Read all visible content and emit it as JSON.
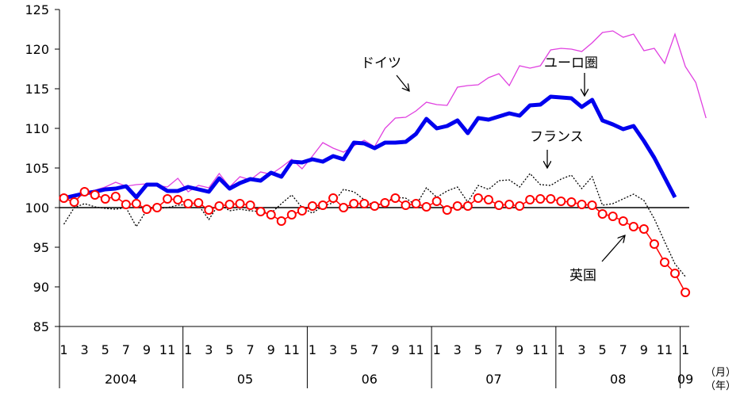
{
  "chart_data": {
    "type": "line",
    "title": "",
    "xlabel": "",
    "ylabel": "",
    "ylim": [
      85,
      125
    ],
    "yticks": [
      "125",
      "120",
      "115",
      "110",
      "105",
      "100",
      "95",
      "90",
      "85"
    ],
    "reference_line": 100,
    "month_labels": [
      "1",
      "3",
      "5",
      "7",
      "9",
      "11",
      "1",
      "3",
      "5",
      "7",
      "9",
      "11",
      "1",
      "3",
      "5",
      "7",
      "9",
      "11",
      "1",
      "3",
      "5",
      "7",
      "9",
      "11",
      "1",
      "3",
      "5",
      "7",
      "9",
      "11",
      "1"
    ],
    "year_labels": [
      "2004",
      "05",
      "06",
      "07",
      "08",
      "09"
    ],
    "unit_month": "（月）",
    "unit_year": "（年）",
    "series": [
      {
        "name": "ドイツ",
        "color": "#e040e0",
        "values": [
          101.0,
          101.3,
          101.9,
          102.2,
          102.6,
          103.2,
          102.7,
          102.9,
          103.0,
          102.8,
          102.6,
          103.7,
          102.0,
          102.8,
          102.5,
          104.3,
          102.6,
          103.9,
          103.5,
          104.5,
          104.2,
          105.1,
          106.1,
          104.9,
          106.5,
          108.2,
          107.5,
          107.0,
          107.8,
          108.5,
          107.7,
          110.0,
          111.3,
          111.4,
          112.2,
          113.3,
          113.0,
          112.9,
          115.2,
          115.4,
          115.5,
          116.4,
          116.9,
          115.4,
          117.9,
          117.6,
          117.9,
          119.9,
          120.1,
          120.0,
          119.7,
          120.8,
          122.1,
          122.3,
          121.5,
          121.9,
          119.8,
          120.1,
          118.2,
          121.9,
          117.8,
          115.8,
          111.3
        ]
      },
      {
        "name": "ユーロ圏",
        "color": "#0000ee",
        "values": [
          101.2,
          101.5,
          101.8,
          102.0,
          102.3,
          102.4,
          102.7,
          101.3,
          102.9,
          102.9,
          102.1,
          102.1,
          102.6,
          102.3,
          102.0,
          103.7,
          102.4,
          103.1,
          103.6,
          103.4,
          104.4,
          103.9,
          105.8,
          105.7,
          106.1,
          105.8,
          106.5,
          106.1,
          108.2,
          108.1,
          107.5,
          108.2,
          108.2,
          108.3,
          109.3,
          111.2,
          110.0,
          110.3,
          111.0,
          109.4,
          111.3,
          111.1,
          111.5,
          111.9,
          111.6,
          112.9,
          113.0,
          114.0,
          113.9,
          113.8,
          112.7,
          113.6,
          111.0,
          110.5,
          109.9,
          110.3,
          108.4,
          106.3,
          103.8,
          101.3
        ]
      },
      {
        "name": "フランス",
        "color": "#000000",
        "values": [
          97.9,
          100.0,
          100.5,
          100.1,
          99.9,
          99.8,
          100.0,
          97.6,
          99.7,
          99.9,
          100.0,
          100.3,
          100.4,
          100.3,
          98.5,
          100.5,
          99.6,
          99.8,
          99.6,
          99.5,
          99.3,
          100.5,
          101.6,
          100.0,
          99.3,
          100.2,
          100.6,
          102.3,
          102.0,
          101.0,
          100.2,
          100.7,
          101.3,
          101.2,
          100.3,
          102.5,
          101.3,
          102.1,
          102.6,
          100.7,
          102.8,
          102.3,
          103.4,
          103.5,
          102.6,
          104.3,
          102.9,
          102.8,
          103.6,
          104.1,
          102.4,
          103.9,
          100.3,
          100.5,
          101.1,
          101.7,
          100.9,
          98.6,
          95.7,
          92.9,
          91.3
        ]
      },
      {
        "name": "英国",
        "color": "#ff0000",
        "values": [
          101.2,
          100.7,
          102.0,
          101.6,
          101.1,
          101.4,
          100.4,
          100.5,
          99.8,
          100.0,
          101.1,
          101.0,
          100.5,
          100.6,
          99.7,
          100.2,
          100.4,
          100.5,
          100.3,
          99.5,
          99.1,
          98.3,
          99.1,
          99.6,
          100.2,
          100.3,
          101.2,
          100.0,
          100.5,
          100.5,
          100.2,
          100.6,
          101.2,
          100.3,
          100.5,
          100.1,
          100.8,
          99.7,
          100.2,
          100.2,
          101.2,
          101.0,
          100.3,
          100.4,
          100.2,
          101.0,
          101.1,
          101.1,
          100.8,
          100.7,
          100.4,
          100.3,
          99.2,
          98.9,
          98.3,
          97.6,
          97.3,
          95.4,
          93.1,
          91.7,
          89.3
        ]
      }
    ],
    "annotations": [
      {
        "text": "ドイツ",
        "series": "ドイツ"
      },
      {
        "text": "ユーロ圏",
        "series": "ユーロ圏"
      },
      {
        "text": "フランス",
        "series": "フランス"
      },
      {
        "text": "英国",
        "series": "英国"
      }
    ]
  }
}
